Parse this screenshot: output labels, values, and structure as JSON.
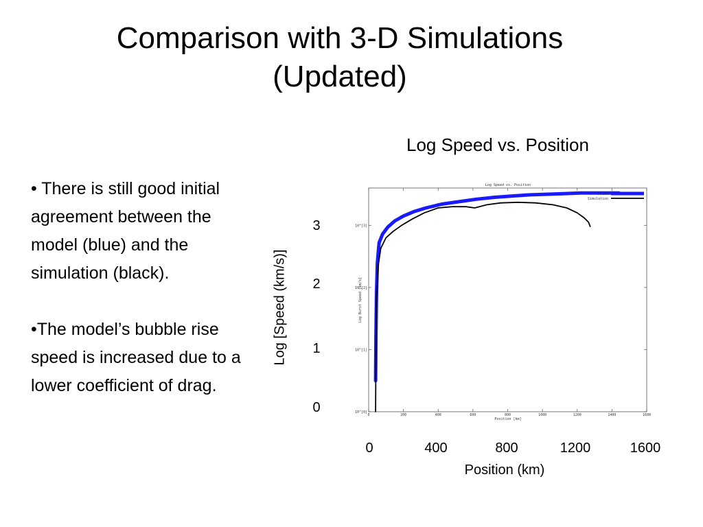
{
  "slide": {
    "title_line1": "Comparison with 3-D Simulations",
    "title_line2": "(Updated)",
    "bullets": [
      "• There is still good initial agreement between the model (blue) and the simulation (black).",
      "•The model’s bubble rise speed is increased due to a lower coefficient of drag."
    ]
  },
  "chart_heading": "Log Speed vs. Position",
  "outer_axes": {
    "ylabel": "Log [Speed (km/s)]",
    "yticks": [
      "3",
      "2",
      "1",
      "0"
    ],
    "xticks": [
      "0",
      "400",
      "800",
      "1200",
      "1600"
    ],
    "xlabel": "Position (km)"
  },
  "chart_data": {
    "type": "line",
    "title": "Log Speed vs. Position",
    "xlabel": "Position [km]",
    "ylabel": "Log Burst Speed [km/s]",
    "xlim": [
      0,
      1600
    ],
    "ylim": [
      0,
      3.6
    ],
    "xticks": [
      0,
      200,
      400,
      600,
      800,
      1000,
      1200,
      1400,
      1600
    ],
    "yticks": [
      0,
      1,
      2,
      3
    ],
    "ytick_labels": [
      "10^[0]",
      "10^[1]",
      "10^[2]",
      "10^[3]"
    ],
    "legend": "top-right",
    "grid": false,
    "series": [
      {
        "name": "Model",
        "color": "#1a1aff",
        "x": [
          40,
          42,
          45,
          50,
          60,
          80,
          110,
          150,
          200,
          260,
          330,
          420,
          520,
          620,
          720,
          820,
          920,
          1020,
          1120,
          1220,
          1320,
          1440
        ],
        "y": [
          0.5,
          1.2,
          1.9,
          2.4,
          2.72,
          2.86,
          2.97,
          3.07,
          3.15,
          3.22,
          3.28,
          3.34,
          3.38,
          3.42,
          3.45,
          3.47,
          3.49,
          3.5,
          3.51,
          3.52,
          3.52,
          3.52
        ]
      },
      {
        "name": "Simulation",
        "color": "#000000",
        "x": [
          40,
          42,
          45,
          55,
          70,
          100,
          140,
          190,
          250,
          320,
          400,
          480,
          560,
          610,
          680,
          760,
          860,
          960,
          1060,
          1140,
          1200,
          1240,
          1265,
          1275
        ],
        "y": [
          0.0,
          1.0,
          1.8,
          2.35,
          2.63,
          2.8,
          2.9,
          3.0,
          3.1,
          3.2,
          3.28,
          3.3,
          3.3,
          3.28,
          3.33,
          3.36,
          3.37,
          3.36,
          3.33,
          3.28,
          3.2,
          3.12,
          3.05,
          2.98
        ]
      }
    ]
  }
}
